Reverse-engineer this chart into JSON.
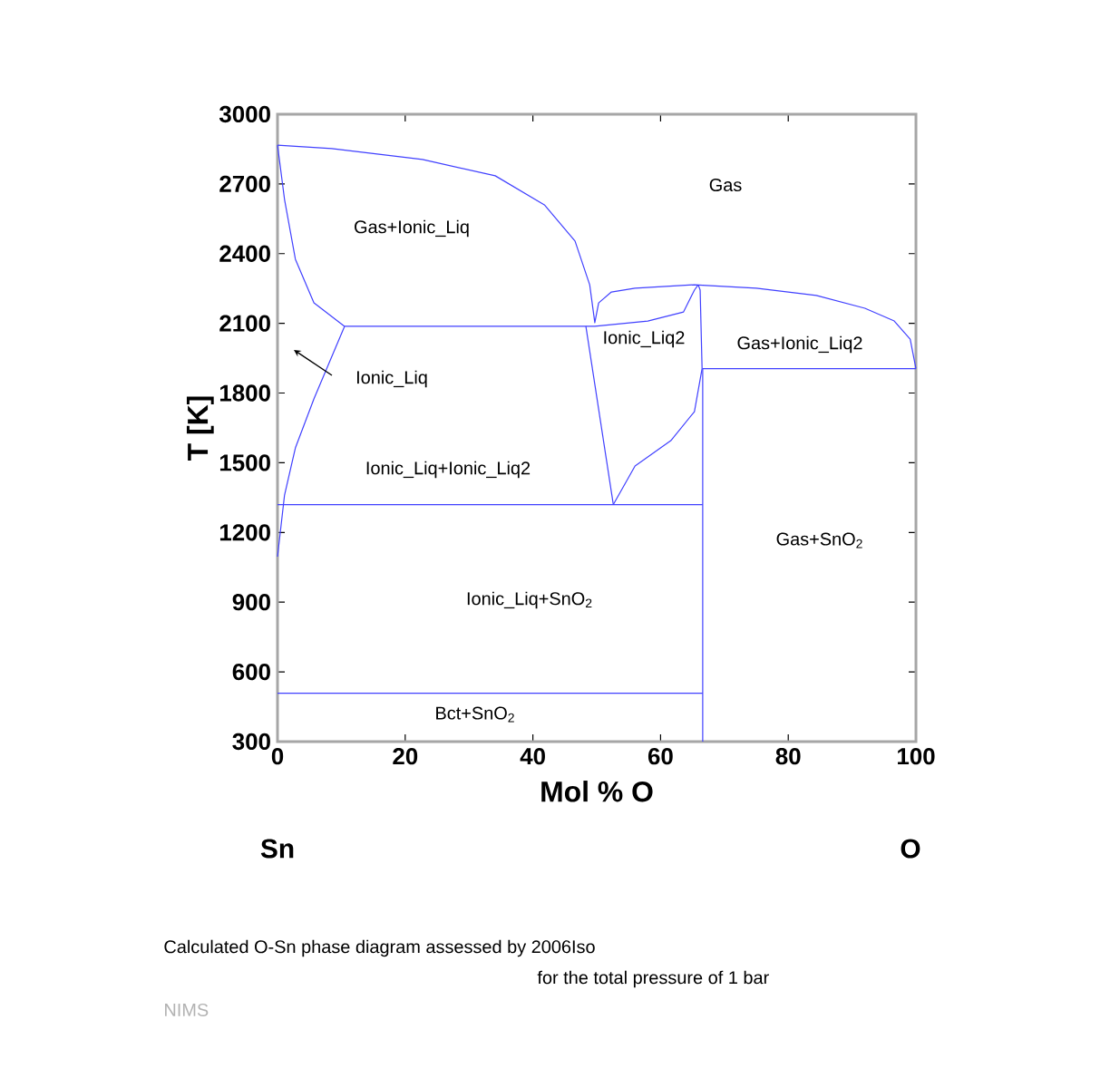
{
  "chart_data": {
    "type": "line",
    "xlabel": "Mol % O",
    "ylabel": "T [K]",
    "xlim": [
      0,
      100
    ],
    "ylim": [
      300,
      3000
    ],
    "xticks": [
      0,
      20,
      40,
      60,
      80,
      100
    ],
    "yticks": [
      300,
      600,
      900,
      1200,
      1500,
      1800,
      2100,
      2400,
      2700,
      3000
    ],
    "series": [
      {
        "color": "#4040ff",
        "x": [
          0,
          8.5,
          22.7,
          34.1,
          41.8,
          46.6,
          48.9,
          49.7,
          50.3,
          52.3,
          56.0,
          65.3,
          75.0,
          84.4,
          92.0,
          96.6,
          99.1,
          100
        ],
        "values": [
          2867,
          2852,
          2805,
          2735,
          2610,
          2454,
          2266,
          2103,
          2188,
          2235,
          2251,
          2266,
          2251,
          2220,
          2165,
          2110,
          2032,
          1905
        ]
      },
      {
        "color": "#4040ff",
        "x": [
          0,
          1.1,
          2.8,
          5.7,
          10.5
        ],
        "values": [
          2867,
          2633,
          2376,
          2188,
          2087
        ]
      },
      {
        "color": "#4040ff",
        "x": [
          0,
          1.1,
          2.8,
          5.7,
          10.5
        ],
        "values": [
          1096,
          1361,
          1564,
          1775,
          2087
        ]
      },
      {
        "color": "#4040ff",
        "x": [
          10.5,
          49.7,
          58.0,
          63.6,
          65.3,
          65.9
        ],
        "values": [
          2087,
          2087,
          2110,
          2149,
          2243,
          2266
        ]
      },
      {
        "color": "#4040ff",
        "x": [
          48.3,
          52.6
        ],
        "values": [
          2087,
          1320
        ]
      },
      {
        "color": "#4040ff",
        "x": [
          52.6,
          56.0,
          61.6,
          65.3,
          66.5,
          66.2,
          65.9
        ],
        "values": [
          1320,
          1486,
          1595,
          1720,
          1905,
          2243,
          2266
        ]
      },
      {
        "color": "#4040ff",
        "x": [
          0,
          66.6
        ],
        "values": [
          1320,
          1320
        ]
      },
      {
        "color": "#4040ff",
        "x": [
          0,
          66.6
        ],
        "values": [
          508,
          508
        ]
      },
      {
        "color": "#4040ff",
        "x": [
          66.6,
          100
        ],
        "values": [
          1905,
          1905
        ]
      },
      {
        "color": "#4040ff",
        "x": [
          66.6,
          66.6
        ],
        "values": [
          300,
          1905
        ]
      }
    ],
    "annotations": [
      "Gas",
      "Gas+Ionic_Liq",
      "Ionic_Liq",
      "Ionic_Liq2",
      "Gas+Ionic_Liq2",
      "Ionic_Liq+Ionic_Liq2",
      "Ionic_Liq+SnO$_{2}$",
      "Gas+SnO$_{2}$",
      "Bct+SnO$_{2}$",
      "Sn",
      "O",
      "Calculated O-Sn phase diagram assessed by 2006Iso",
      "for the total pressure of 1 bar",
      "NIMS"
    ]
  }
}
